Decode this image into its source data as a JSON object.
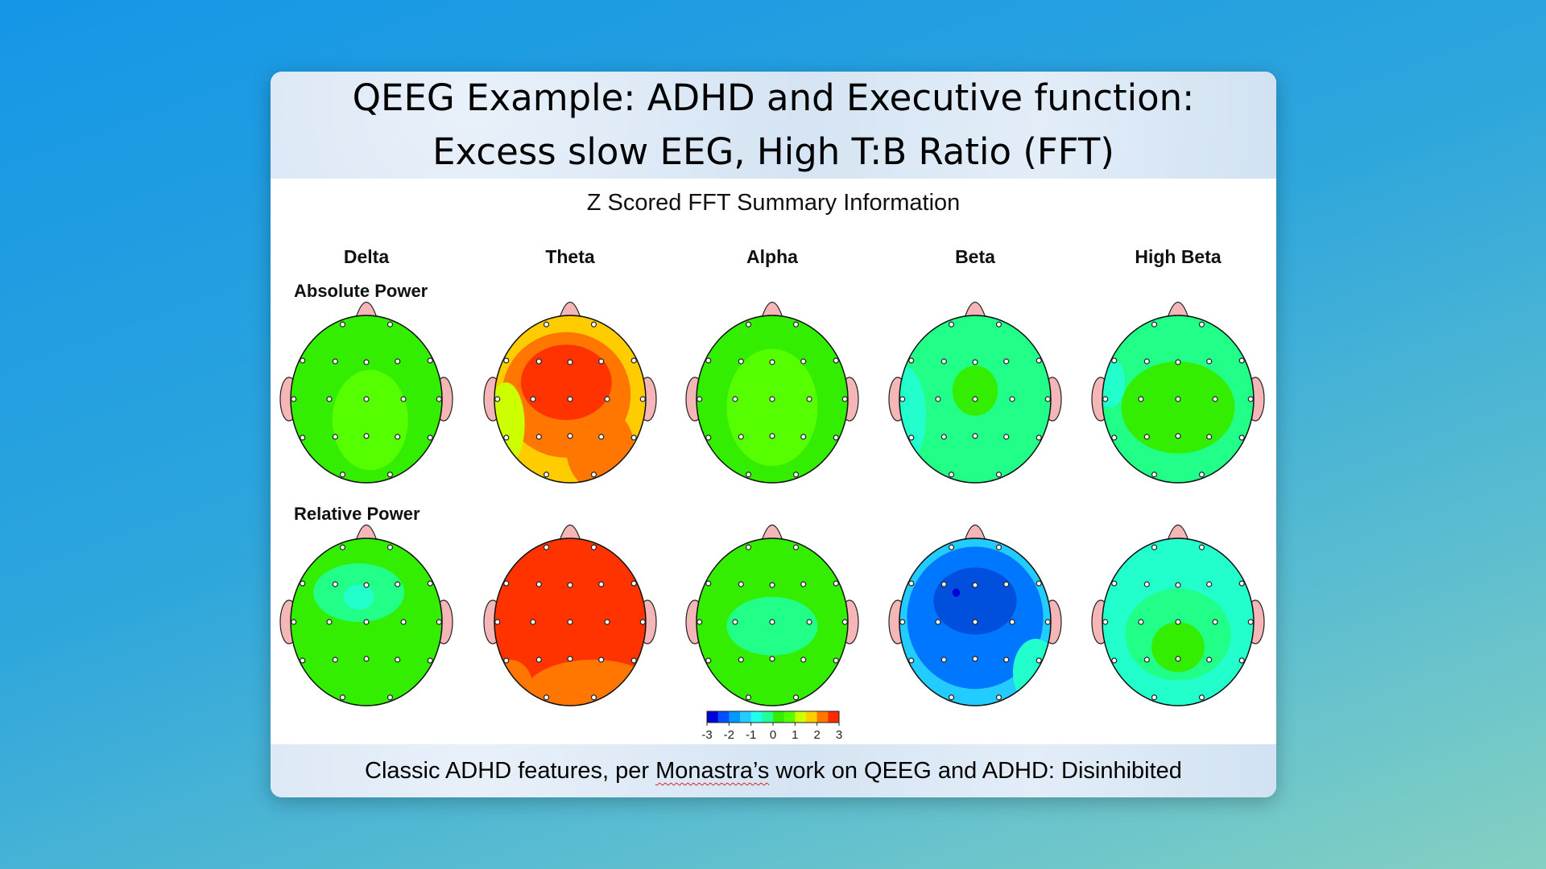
{
  "title_line1": "QEEG Example: ADHD and Executive function:",
  "title_line2": "Excess slow EEG, High T:B Ratio (FFT)",
  "figure": {
    "subtitle": "Z Scored FFT Summary Information",
    "bands": [
      "Delta",
      "Theta",
      "Alpha",
      "Beta",
      "High Beta"
    ],
    "rows": [
      "Absolute Power",
      "Relative Power"
    ],
    "colorbar": {
      "ticks": [
        "-3",
        "-2",
        "-1",
        "0",
        "1",
        "2",
        "3"
      ],
      "colors": [
        "#0000d8",
        "#0050ff",
        "#0098ff",
        "#22ccff",
        "#22ffee",
        "#22ff99",
        "#33ee00",
        "#55ff00",
        "#ccff00",
        "#ffcc00",
        "#ff7700",
        "#ff2a00"
      ]
    },
    "maps": [
      [
        {
          "band": "Delta",
          "base": "#33ee00",
          "regions": [
            "#55ff00"
          ]
        },
        {
          "band": "Theta",
          "base": "#ffcc00",
          "regions": [
            "#ff7700",
            "#ff3300",
            "#ccff00"
          ]
        },
        {
          "band": "Alpha",
          "base": "#33ee00",
          "regions": [
            "#55ff00"
          ]
        },
        {
          "band": "Beta",
          "base": "#22ff88",
          "regions": [
            "#22ffcc",
            "#33ee00"
          ]
        },
        {
          "band": "High Beta",
          "base": "#22ff88",
          "regions": [
            "#33ee00",
            "#22ffcc"
          ]
        }
      ],
      [
        {
          "band": "Delta",
          "base": "#33ee00",
          "regions": [
            "#22ff88",
            "#22ffcc"
          ]
        },
        {
          "band": "Theta",
          "base": "#ff3300",
          "regions": [
            "#ff7700"
          ]
        },
        {
          "band": "Alpha",
          "base": "#33ee00",
          "regions": [
            "#22ff88"
          ]
        },
        {
          "band": "Beta",
          "base": "#22ccff",
          "regions": [
            "#0077ff",
            "#0050dd",
            "#22ffcc",
            "#0000d8"
          ]
        },
        {
          "band": "High Beta",
          "base": "#22ffcc",
          "regions": [
            "#22ff88",
            "#33ee00"
          ]
        }
      ]
    ]
  },
  "footer": {
    "before": "Classic ADHD features, per ",
    "flagged_word": "Monastra’s",
    "after": " work on QEEG and ADHD: Disinhibited"
  }
}
